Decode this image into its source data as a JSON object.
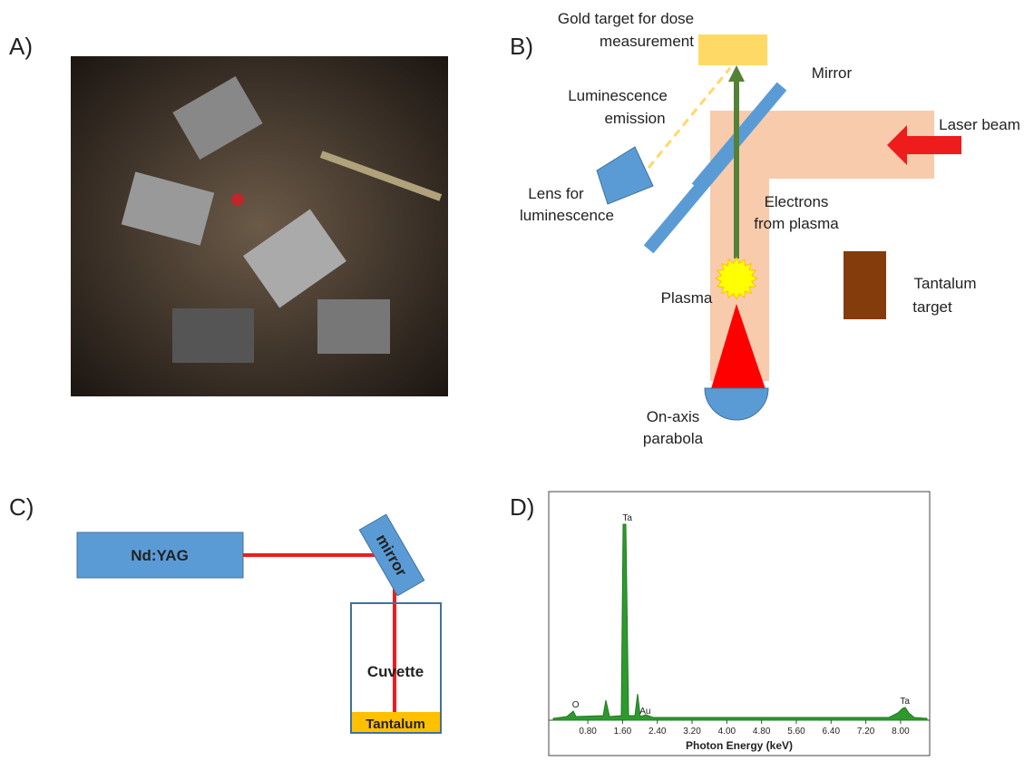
{
  "panel_a": {
    "label": "A)"
  },
  "panel_b": {
    "label": "B)",
    "gold_target": [
      "Gold target for dose",
      "measurement"
    ],
    "mirror": "Mirror",
    "laser_beam": "Laser beam",
    "luminescence_emission": [
      "Luminescence",
      "emission"
    ],
    "lens": [
      "Lens for",
      "luminescence"
    ],
    "electrons": [
      "Electrons",
      "from plasma"
    ],
    "plasma": "Plasma",
    "tantalum_target": [
      "Tantalum",
      "target"
    ],
    "parabola": [
      "On-axis",
      "parabola"
    ]
  },
  "panel_c": {
    "label": "C)",
    "laser": "Nd:YAG",
    "mirror": "mirror",
    "cuvette": "Cuvette",
    "tantalum": "Tantalum"
  },
  "panel_d": {
    "label": "D)",
    "x_axis_label": "Photon Energy (keV)",
    "xlim": [
      -0.1,
      8.67
    ],
    "xticks": [
      {
        "value": 0.8,
        "label": "0.80"
      },
      {
        "value": 1.6,
        "label": "1.60"
      },
      {
        "value": 2.4,
        "label": "2.40"
      },
      {
        "value": 3.2,
        "label": "3.20"
      },
      {
        "value": 4.0,
        "label": "4.00"
      },
      {
        "value": 4.8,
        "label": "4.80"
      },
      {
        "value": 5.6,
        "label": "5.60"
      },
      {
        "value": 6.4,
        "label": "6.40"
      },
      {
        "value": 7.2,
        "label": "7.20"
      },
      {
        "value": 8.0,
        "label": "8.00"
      }
    ],
    "peak_labels": [
      {
        "text": "O",
        "energy": 0.52
      },
      {
        "text": "Ta",
        "energy": 1.71
      },
      {
        "text": "Au",
        "energy": 2.12
      },
      {
        "text": "Ta",
        "energy": 8.1
      }
    ]
  }
}
